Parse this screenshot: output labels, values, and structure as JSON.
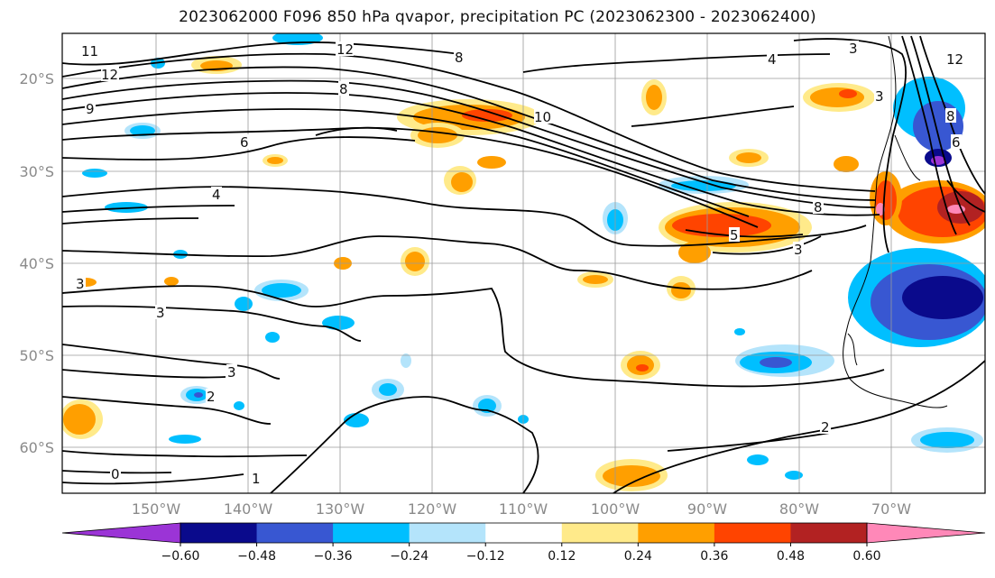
{
  "title": "2023062000 F096 850 hPa qvapor, precipitation PC (2023062300 - 2023062400)",
  "lat_labels": [
    "20°S",
    "30°S",
    "40°S",
    "50°S",
    "60°S"
  ],
  "lon_labels": [
    "150°W",
    "140°W",
    "130°W",
    "120°W",
    "110°W",
    "100°W",
    "90°W",
    "80°W",
    "70°W"
  ],
  "colorbar": {
    "tick_labels": [
      "−0.60",
      "−0.48",
      "−0.36",
      "−0.24",
      "−0.12",
      "0.12",
      "0.24",
      "0.36",
      "0.48",
      "0.60"
    ],
    "colors": [
      "#9b34d6",
      "#0a0a8c",
      "#3857d2",
      "#00bfff",
      "#b4e4fb",
      "#ffffff",
      "#ffea8a",
      "#ff9f00",
      "#ff4400",
      "#b22222",
      "#ff88b8"
    ]
  },
  "contour_labels": [
    "11",
    "12",
    "12",
    "8",
    "9",
    "6",
    "4",
    "8",
    "4",
    "10",
    "8",
    "3",
    "5",
    "3",
    "3",
    "3",
    "3",
    "2",
    "2",
    "0",
    "1",
    "12",
    "6",
    "8",
    "3"
  ]
}
